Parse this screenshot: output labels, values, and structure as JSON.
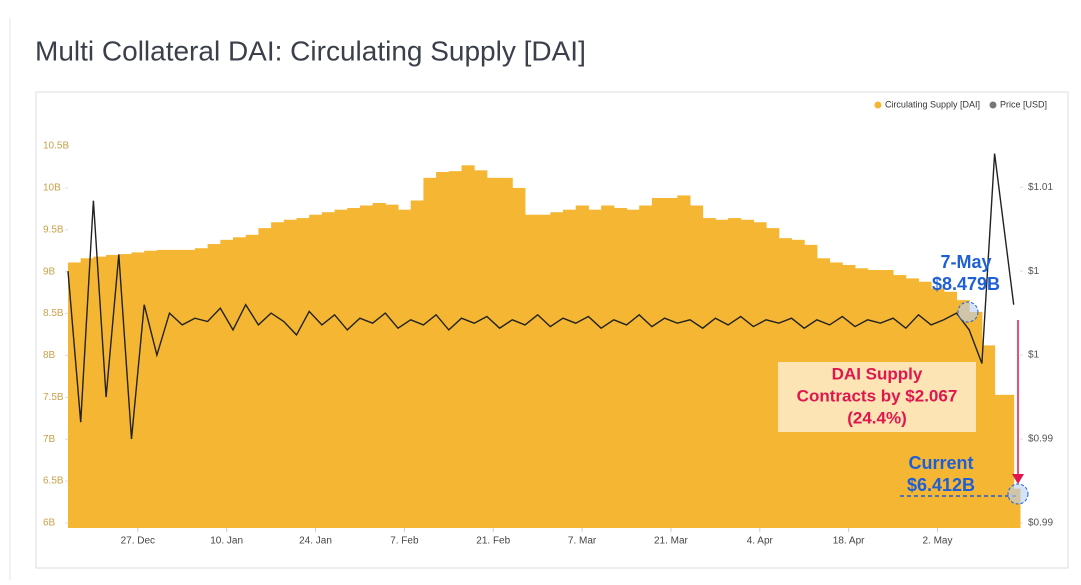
{
  "chart_data": {
    "type": "bar-line",
    "title": "Multi Collateral DAI: Circulating Supply [DAI]",
    "x": [
      0,
      2,
      4,
      6,
      8,
      10,
      12,
      14,
      16,
      18,
      20,
      22,
      24,
      26,
      28,
      30,
      32,
      34,
      36,
      38,
      40,
      42,
      44,
      46,
      48,
      50,
      52,
      54,
      56,
      58,
      60,
      62,
      64,
      66,
      68,
      70,
      72,
      74,
      76,
      78,
      80,
      82,
      84,
      86,
      88,
      90,
      92,
      94,
      96,
      98,
      100,
      102,
      104,
      106,
      108,
      110,
      112,
      114,
      116,
      118,
      120,
      122,
      124,
      126,
      128,
      130,
      132,
      134,
      136,
      138,
      140,
      142,
      144,
      146,
      149
    ],
    "series": [
      {
        "name": "Circulating Supply [DAI]",
        "color": "#f5b733",
        "values": [
          9.11,
          9.16,
          9.18,
          9.2,
          9.21,
          9.23,
          9.25,
          9.26,
          9.26,
          9.26,
          9.28,
          9.33,
          9.38,
          9.41,
          9.44,
          9.52,
          9.59,
          9.62,
          9.64,
          9.68,
          9.71,
          9.74,
          9.76,
          9.79,
          9.82,
          9.8,
          9.74,
          9.85,
          10.12,
          10.19,
          10.2,
          10.27,
          10.21,
          10.12,
          10.12,
          10.0,
          9.68,
          9.68,
          9.71,
          9.74,
          9.79,
          9.74,
          9.79,
          9.76,
          9.74,
          9.79,
          9.88,
          9.88,
          9.91,
          9.79,
          9.64,
          9.62,
          9.64,
          9.62,
          9.59,
          9.52,
          9.4,
          9.38,
          9.32,
          9.16,
          9.11,
          9.08,
          9.04,
          9.02,
          9.02,
          8.96,
          8.92,
          8.88,
          8.8,
          8.76,
          8.66,
          8.52,
          8.12,
          7.53,
          6.41
        ]
      },
      {
        "name": "Price [USD]",
        "color": "#222222",
        "axis": "y2",
        "values": [
          1.005,
          0.996,
          1.0092,
          0.9975,
          1.006,
          0.995,
          1.003,
          1.0,
          1.0025,
          1.0018,
          1.0022,
          1.002,
          1.0028,
          1.0015,
          1.003,
          1.0018,
          1.0025,
          1.002,
          1.0012,
          1.0026,
          1.0018,
          1.0024,
          1.0015,
          1.0022,
          1.0019,
          1.0025,
          1.0016,
          1.0021,
          1.0018,
          1.0024,
          1.0015,
          1.0022,
          1.0019,
          1.0023,
          1.0016,
          1.0021,
          1.0018,
          1.0024,
          1.0017,
          1.0022,
          1.0019,
          1.0023,
          1.0016,
          1.0021,
          1.0018,
          1.0024,
          1.0017,
          1.0022,
          1.0019,
          1.0021,
          1.0016,
          1.0022,
          1.0018,
          1.0023,
          1.0017,
          1.0021,
          1.0019,
          1.0022,
          1.0016,
          1.0021,
          1.0018,
          1.0023,
          1.0017,
          1.0021,
          1.0019,
          1.0022,
          1.0016,
          1.0024,
          1.0018,
          1.0021,
          1.0025,
          1.0015,
          0.9995,
          1.012,
          1.003
        ]
      }
    ],
    "xlim": [
      0,
      150
    ],
    "xticks": [
      {
        "value": 11,
        "label": "27. Dec"
      },
      {
        "value": 25,
        "label": "10. Jan"
      },
      {
        "value": 39,
        "label": "24. Jan"
      },
      {
        "value": 53,
        "label": "7. Feb"
      },
      {
        "value": 67,
        "label": "21. Feb"
      },
      {
        "value": 81,
        "label": "7. Mar"
      },
      {
        "value": 95,
        "label": "21. Mar"
      },
      {
        "value": 109,
        "label": "4. Apr"
      },
      {
        "value": 123,
        "label": "18. Apr"
      },
      {
        "value": 137,
        "label": "2. May"
      }
    ],
    "ylim": [
      5.94,
      10.93
    ],
    "yticks": [
      {
        "value": 6,
        "label": "6B"
      },
      {
        "value": 6.5,
        "label": "6.5B"
      },
      {
        "value": 7,
        "label": "7B"
      },
      {
        "value": 7.5,
        "label": "7.5B"
      },
      {
        "value": 8,
        "label": "8B"
      },
      {
        "value": 8.5,
        "label": "8.5B"
      },
      {
        "value": 9,
        "label": "9B"
      },
      {
        "value": 9.5,
        "label": "9.5B"
      },
      {
        "value": 10,
        "label": "10B"
      },
      {
        "value": 10.5,
        "label": "10.5B"
      }
    ],
    "y2lim": [
      0.9897,
      1.0146
    ],
    "y2ticks": [
      {
        "value": 0.99,
        "label": "$0.99"
      },
      {
        "value": 0.995,
        "label": "$0.99"
      },
      {
        "value": 1.0,
        "label": "$1"
      },
      {
        "value": 1.005,
        "label": "$1"
      },
      {
        "value": 1.01,
        "label": "$1.01"
      }
    ],
    "legend": "top-right",
    "annotations": [
      {
        "lines": [
          "7-May",
          "$8.479B"
        ]
      },
      {
        "lines": [
          "DAI Supply",
          "Contracts by $2.067",
          "(24.4%)"
        ]
      },
      {
        "lines": [
          "Current",
          "$6.412B"
        ]
      }
    ]
  }
}
